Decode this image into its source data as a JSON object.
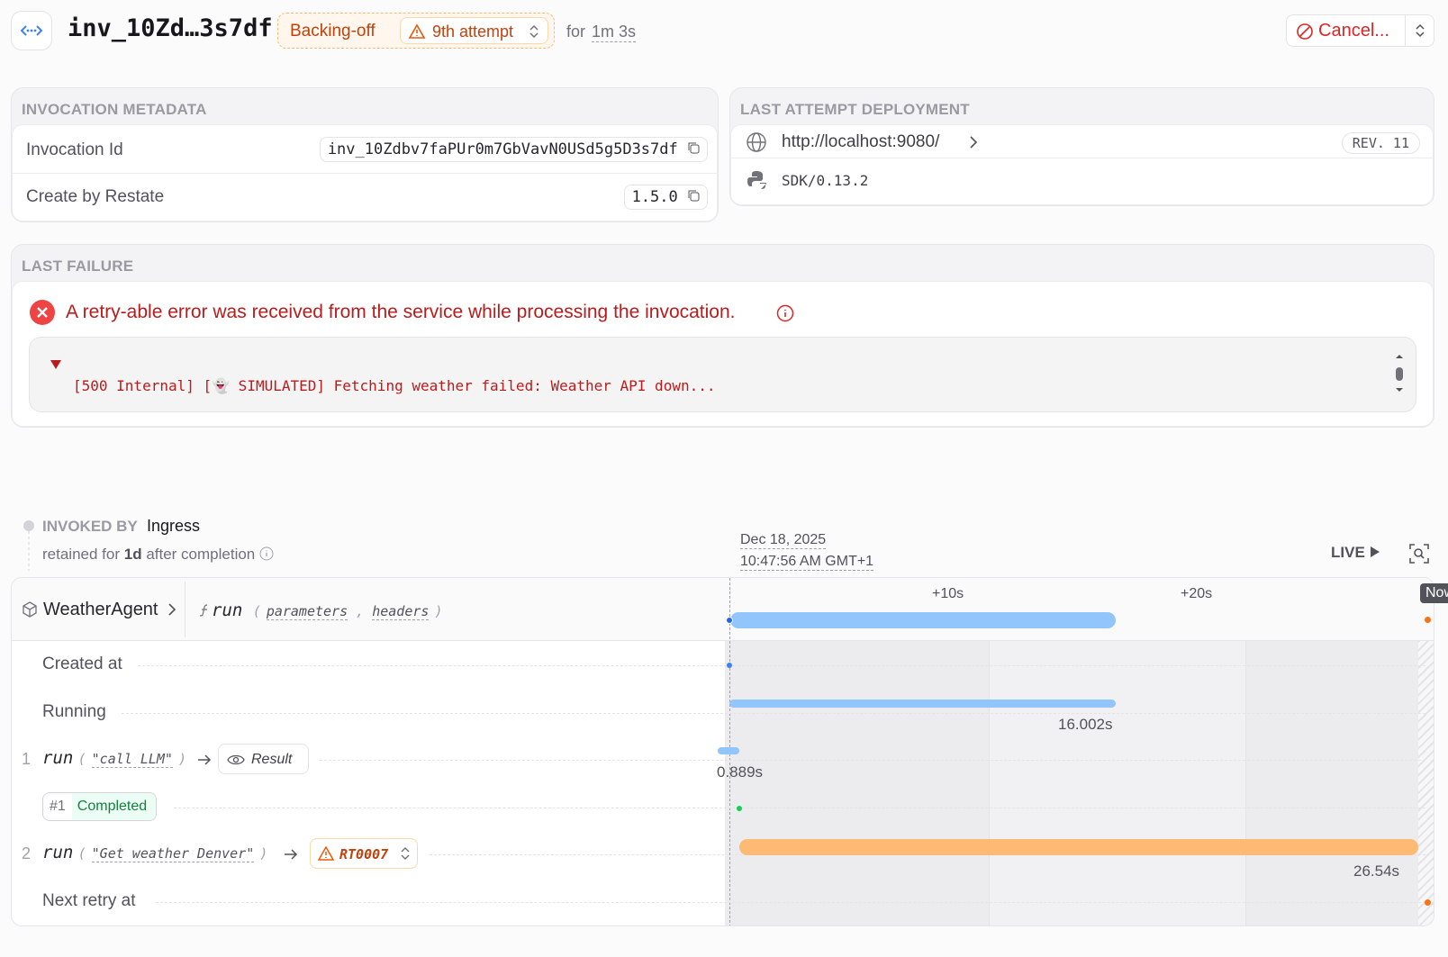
{
  "header": {
    "title": "inv_10Zd…3s7df",
    "status": "Backing-off",
    "attempt": "9th attempt",
    "for": "for",
    "duration": "1m 3s",
    "cancel": "Cancel..."
  },
  "metadata": {
    "title": "INVOCATION METADATA",
    "rows": [
      [
        "Invocation Id",
        "inv_10Zdbv7faPUr0m7GbVavN0USd5g5D3s7df"
      ],
      [
        "Create by Restate",
        "1.5.0"
      ]
    ]
  },
  "deployment": {
    "title": "LAST ATTEMPT DEPLOYMENT",
    "endpoint": "http://localhost:9080/",
    "revision": "REV. 11",
    "sdk": "SDK/0.13.2"
  },
  "failure": {
    "title": "LAST FAILURE",
    "message": "A retry-able error was received from the service while processing the invocation.",
    "detail": "[500 Internal] [👻 SIMULATED] Fetching weather failed: Weather API down..."
  },
  "invoked": {
    "label": "INVOKED BY",
    "by": "Ingress",
    "retained_prefix": "retained for",
    "retained": "1d",
    "retained_suffix": "after completion"
  },
  "timeline": {
    "date": "Dec 18, 2025",
    "time": "10:47:56 AM GMT+1",
    "live": "LIVE",
    "ticks": [
      "+10s",
      "+20s"
    ],
    "now": "Now",
    "service": "WeatherAgent",
    "handler": "run",
    "params": [
      "parameters",
      "headers"
    ],
    "rows": [
      {
        "label": "Created at"
      },
      {
        "label": "Running",
        "duration": "16.002s"
      },
      {
        "index": "1",
        "name": "run",
        "arg": "\"call LLM\"",
        "action": "Result",
        "duration": "0.889s"
      },
      {
        "attempt": "#1",
        "status": "Completed"
      },
      {
        "index": "2",
        "name": "run",
        "arg": "\"Get weather Denver\"",
        "error": "RT0007",
        "duration": "26.54s"
      },
      {
        "label": "Next retry at"
      }
    ]
  }
}
